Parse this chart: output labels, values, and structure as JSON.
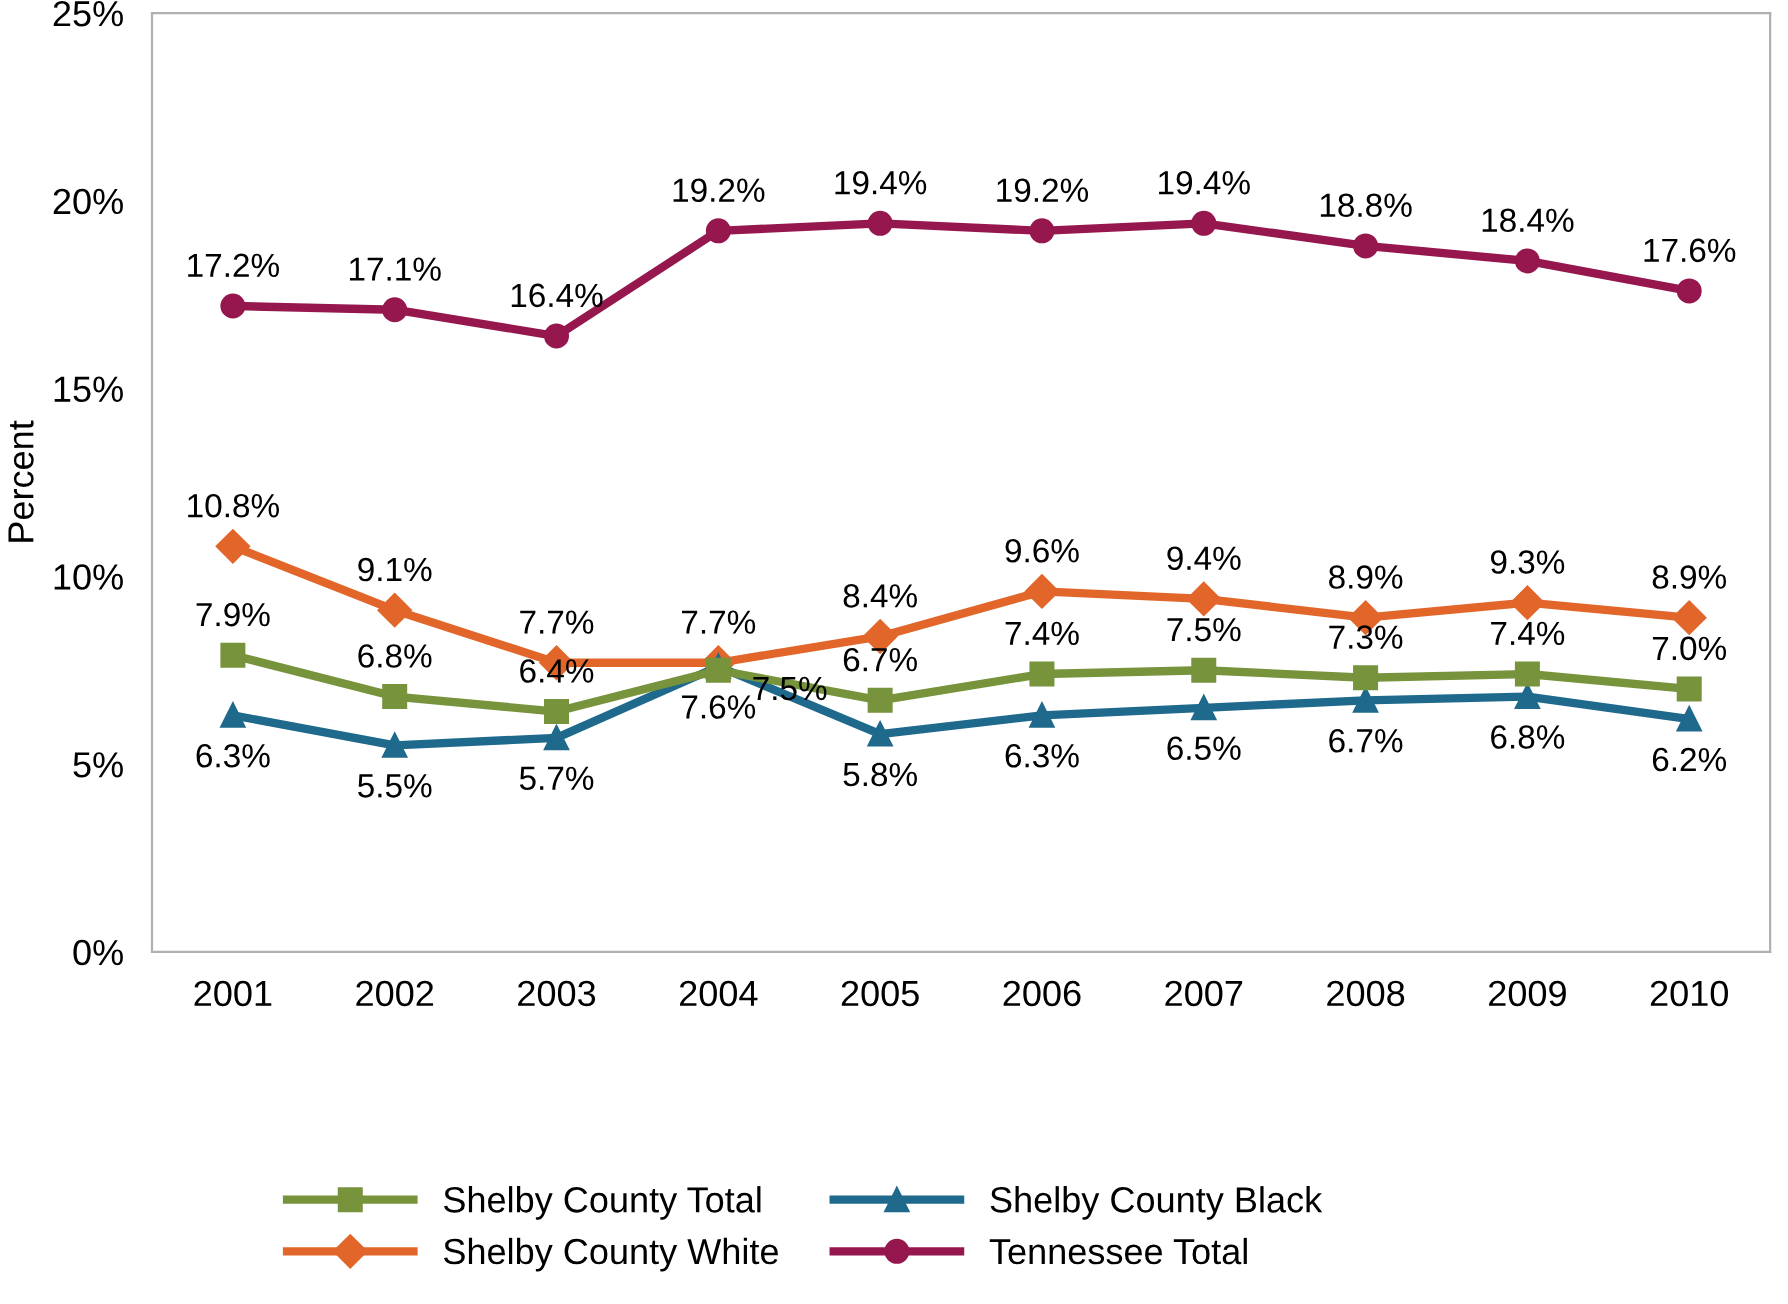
{
  "chart_data": {
    "type": "line",
    "ylabel": "Percent",
    "categories": [
      "2001",
      "2002",
      "2003",
      "2004",
      "2005",
      "2006",
      "2007",
      "2008",
      "2009",
      "2010"
    ],
    "ylim": [
      0,
      25
    ],
    "yticks": [
      {
        "value": 0,
        "label": "0%"
      },
      {
        "value": 5,
        "label": "5%"
      },
      {
        "value": 10,
        "label": "10%"
      },
      {
        "value": 15,
        "label": "15%"
      },
      {
        "value": 20,
        "label": "20%"
      },
      {
        "value": 25,
        "label": "25%"
      }
    ],
    "grid": false,
    "legend": "bottom",
    "line_style": "solid",
    "series": [
      {
        "name": "Shelby County Total",
        "color": "#77933c",
        "marker": "square",
        "values": [
          7.9,
          6.8,
          6.4,
          7.5,
          6.7,
          7.4,
          7.5,
          7.3,
          7.4,
          7.0
        ],
        "value_labels": [
          "7.9%",
          "6.8%",
          "6.4%",
          "7.5%",
          "6.7%",
          "7.4%",
          "7.5%",
          "7.3%",
          "7.4%",
          "7.0%"
        ]
      },
      {
        "name": "Shelby County Black",
        "color": "#1f6a8c",
        "marker": "triangle",
        "values": [
          6.3,
          5.5,
          5.7,
          7.6,
          5.8,
          6.3,
          6.5,
          6.7,
          6.8,
          6.2
        ],
        "value_labels": [
          "6.3%",
          "5.5%",
          "5.7%",
          "7.6%",
          "5.8%",
          "6.3%",
          "6.5%",
          "6.7%",
          "6.8%",
          "6.2%"
        ]
      },
      {
        "name": "Shelby County White",
        "color": "#e2662a",
        "marker": "diamond",
        "values": [
          10.8,
          9.1,
          7.7,
          7.7,
          8.4,
          9.6,
          9.4,
          8.9,
          9.3,
          8.9
        ],
        "value_labels": [
          "10.8%",
          "9.1%",
          "7.7%",
          "7.7%",
          "8.4%",
          "9.6%",
          "9.4%",
          "8.9%",
          "9.3%",
          "8.9%"
        ]
      },
      {
        "name": "Tennessee Total",
        "color": "#96174e",
        "marker": "circle",
        "values": [
          17.2,
          17.1,
          16.4,
          19.2,
          19.4,
          19.2,
          19.4,
          18.8,
          18.4,
          17.6
        ],
        "value_labels": [
          "17.2%",
          "17.1%",
          "16.4%",
          "19.2%",
          "19.4%",
          "19.2%",
          "19.4%",
          "18.8%",
          "18.4%",
          "17.6%"
        ]
      }
    ]
  }
}
